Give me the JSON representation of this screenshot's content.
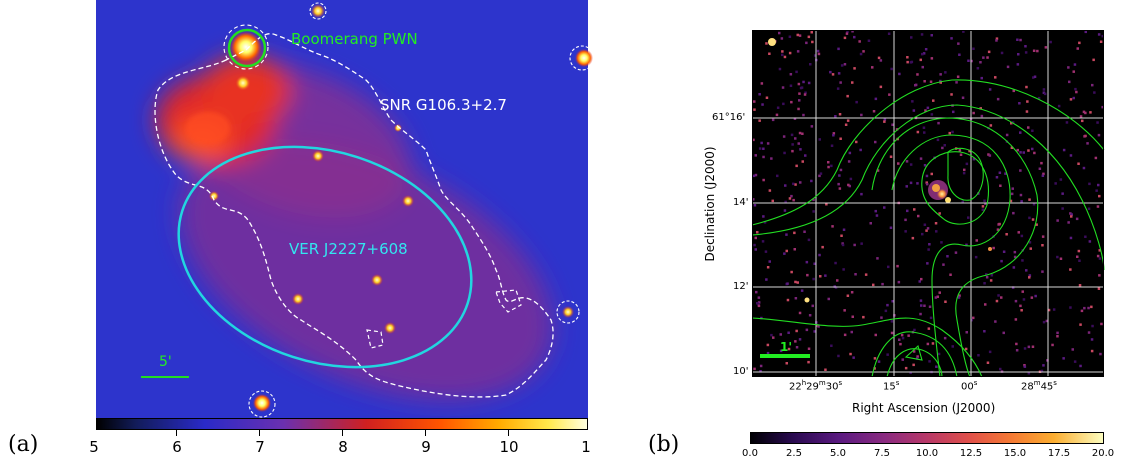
{
  "figure": {
    "panels": [
      {
        "label": "(a)",
        "annotations": {
          "boomerang": "Boomerang PWN",
          "snr": "SNR G106.3+2.7",
          "ver": "VER J2227+608",
          "scale": "5'"
        },
        "colorbar": {
          "ticks": [
            "6",
            "7",
            "8",
            "9",
            "10"
          ],
          "edge_left": "5",
          "edge_right": "1"
        }
      },
      {
        "label": "(b)",
        "xlabel": "Right Ascension (J2000)",
        "ylabel": "Declination (J2000)",
        "ra_ticks": [
          {
            "h": "22",
            "m": "29",
            "s": "30"
          },
          {
            "s": "15"
          },
          {
            "s": "00"
          },
          {
            "m": "28",
            "s": "45"
          }
        ],
        "dec_ticks": [
          "61°16'",
          "14'",
          "12'",
          "10'"
        ],
        "scale": "1'",
        "colorbar": {
          "ticks": [
            "0.0",
            "2.5",
            "5.0",
            "7.5",
            "10.0",
            "12.5",
            "15.0",
            "17.5",
            "20.0"
          ]
        }
      }
    ],
    "colors": {
      "contour": "#22dd22",
      "ellipse": "#22d6e0",
      "boomerang_label": "#22ee22",
      "snr_label": "#ffffff",
      "ver_label": "#33e6f0"
    }
  }
}
